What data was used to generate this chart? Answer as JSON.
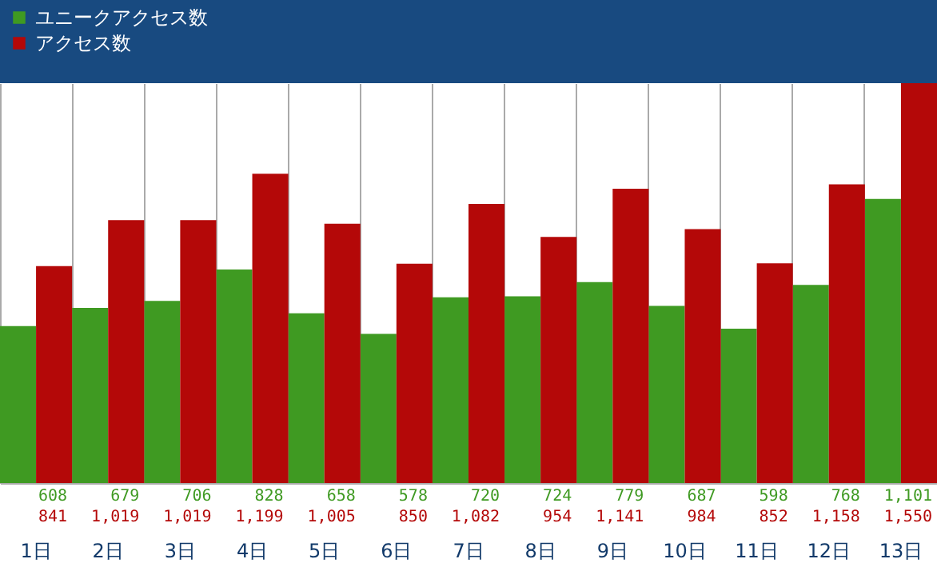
{
  "chart_data": {
    "type": "bar",
    "categories": [
      "1日",
      "2日",
      "3日",
      "4日",
      "5日",
      "6日",
      "7日",
      "8日",
      "9日",
      "10日",
      "11日",
      "12日",
      "13日"
    ],
    "series": [
      {
        "name": "ユニークアクセス数",
        "color": "#3f9a22",
        "values": [
          608,
          679,
          706,
          828,
          658,
          578,
          720,
          724,
          779,
          687,
          598,
          768,
          1101
        ],
        "value_labels": [
          "608",
          "679",
          "706",
          "828",
          "658",
          "578",
          "720",
          "724",
          "779",
          "687",
          "598",
          "768",
          "1,101"
        ]
      },
      {
        "name": "アクセス数",
        "color": "#b40808",
        "values": [
          841,
          1019,
          1019,
          1199,
          1005,
          850,
          1082,
          954,
          1141,
          984,
          852,
          1158,
          1550
        ],
        "value_labels": [
          "841",
          "1,019",
          "1,019",
          "1,199",
          "1,005",
          "850",
          "1,082",
          "954",
          "1,141",
          "984",
          "852",
          "1,158",
          "1,550"
        ]
      }
    ],
    "tick_labels": "x",
    "grid": "x",
    "legend": "top left"
  }
}
